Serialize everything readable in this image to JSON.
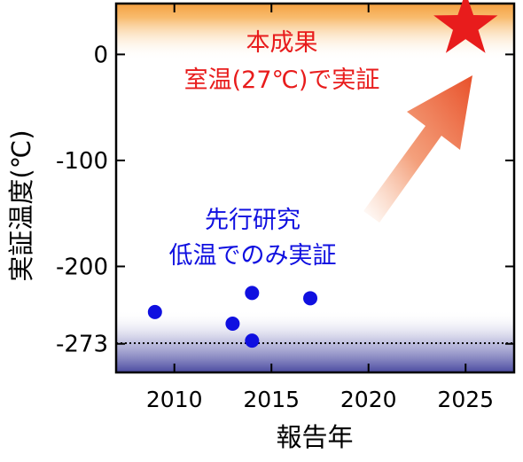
{
  "chart_data": {
    "type": "scatter",
    "xlabel": "報告年",
    "ylabel": "実証温度(℃)",
    "xlim": [
      2007,
      2027.5
    ],
    "ylim": [
      -300,
      48
    ],
    "x_ticks": [
      2010,
      2015,
      2020,
      2025
    ],
    "x_tick_labels": [
      "2010",
      "2015",
      "2020",
      "2025"
    ],
    "y_ticks": [
      0,
      -100,
      -200,
      -273
    ],
    "y_tick_labels": [
      "0",
      "-100",
      "-200",
      "-273"
    ],
    "reference_line": {
      "y": -273,
      "style": "dotted"
    },
    "series": [
      {
        "marker": "circle",
        "color": "#1010e0",
        "points": [
          {
            "x": 2009,
            "y": -243
          },
          {
            "x": 2013,
            "y": -254
          },
          {
            "x": 2014,
            "y": -225
          },
          {
            "x": 2014,
            "y": -270
          },
          {
            "x": 2017,
            "y": -230
          }
        ]
      },
      {
        "marker": "star",
        "color": "#e81c1c",
        "points": [
          {
            "x": 2025,
            "y": 27
          }
        ]
      }
    ],
    "annotations": {
      "this_result": {
        "line1": "本成果",
        "line2": "室温(27℃)で実証",
        "color": "#e81c1c"
      },
      "prior_research": {
        "line1": "先行研究",
        "line2": "低温でのみ実証",
        "color": "#1010e0"
      }
    },
    "grid": false,
    "background_bands": [
      {
        "region": "top",
        "color": "#f5a040"
      },
      {
        "region": "bottom",
        "color": "#4a4aa0"
      }
    ]
  }
}
